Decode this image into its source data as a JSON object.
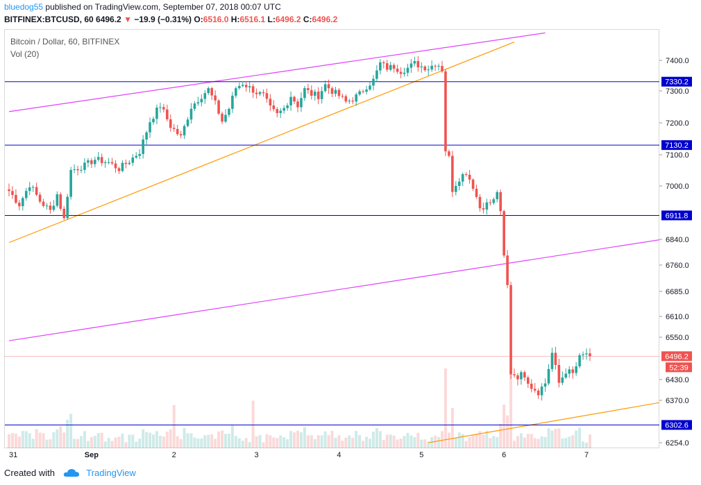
{
  "header": {
    "author": "bluedog55",
    "published_text": "published on TradingView.com, September 07, 2018 00:07 UTC",
    "symbol": "BITFINEX:BTCUSD, 60",
    "last": "6496.2",
    "change": "−19.9 (−0.31%)",
    "o_label": "O:",
    "o_value": "6516.0",
    "h_label": "H:",
    "h_value": "6516.1",
    "l_label": "L:",
    "l_value": "6496.2",
    "c_label": "C:",
    "c_value": "6496.2"
  },
  "legend": {
    "title": "Bitcoin / Dollar, 60, BITFINEX",
    "volume": "Vol (20)"
  },
  "footer": {
    "created_with": "Created with",
    "brand": "TradingView"
  },
  "colors": {
    "up": "#26a69a",
    "down": "#ef5350",
    "channel": "#e040fb",
    "trend": "#ff9800",
    "level": "#0000cc",
    "price_line": "#ef5350"
  },
  "chart_data": {
    "type": "candlestick",
    "ylim": [
      6254,
      7480
    ],
    "yticks": [
      6254,
      6370,
      6430,
      6550,
      6610,
      6685,
      6760,
      6840,
      7000,
      7100,
      7200,
      7300,
      7400
    ],
    "xticks": [
      {
        "label": "31",
        "x": 0
      },
      {
        "label": "Sep",
        "x": 24
      },
      {
        "label": "2",
        "x": 48
      },
      {
        "label": "3",
        "x": 72
      },
      {
        "label": "4",
        "x": 96
      },
      {
        "label": "5",
        "x": 120
      },
      {
        "label": "6",
        "x": 144
      },
      {
        "label": "7",
        "x": 168
      }
    ],
    "levels": [
      {
        "label": "7330.2",
        "value": 7330.2
      },
      {
        "label": "7130.2",
        "value": 7130.2
      },
      {
        "label": "6911.8",
        "value": 6911.8
      },
      {
        "label": "6302.6",
        "value": 6302.6
      }
    ],
    "last_price": {
      "label": "6496.2",
      "value": 6496.2,
      "countdown": "52:39"
    },
    "channel_lines": [
      {
        "x1": 0,
        "y1": 7235,
        "x2": 156,
        "y2": 7490
      },
      {
        "x1": 0,
        "y1": 6540,
        "x2": 190,
        "y2": 6840
      }
    ],
    "trend_lines": [
      {
        "x1": 0,
        "y1": 6830,
        "x2": 147,
        "y2": 7460
      },
      {
        "x1": 122,
        "y1": 6254,
        "x2": 190,
        "y2": 6365
      }
    ],
    "ohlc_anchors": [
      [
        0,
        6985
      ],
      [
        3,
        6945
      ],
      [
        6,
        7005
      ],
      [
        9,
        6955
      ],
      [
        12,
        6925
      ],
      [
        14,
        6975
      ],
      [
        16,
        6900
      ],
      [
        18,
        7050
      ],
      [
        22,
        7065
      ],
      [
        25,
        7085
      ],
      [
        29,
        7075
      ],
      [
        32,
        7055
      ],
      [
        35,
        7080
      ],
      [
        38,
        7110
      ],
      [
        41,
        7205
      ],
      [
        44,
        7255
      ],
      [
        47,
        7190
      ],
      [
        50,
        7155
      ],
      [
        53,
        7250
      ],
      [
        56,
        7285
      ],
      [
        58,
        7305
      ],
      [
        60,
        7260
      ],
      [
        62,
        7205
      ],
      [
        64,
        7245
      ],
      [
        66,
        7310
      ],
      [
        68,
        7325
      ],
      [
        70,
        7310
      ],
      [
        72,
        7295
      ],
      [
        74,
        7285
      ],
      [
        76,
        7245
      ],
      [
        78,
        7225
      ],
      [
        80,
        7245
      ],
      [
        82,
        7285
      ],
      [
        84,
        7255
      ],
      [
        86,
        7305
      ],
      [
        88,
        7290
      ],
      [
        90,
        7285
      ],
      [
        92,
        7320
      ],
      [
        94,
        7300
      ],
      [
        96,
        7285
      ],
      [
        98,
        7265
      ],
      [
        100,
        7275
      ],
      [
        102,
        7290
      ],
      [
        104,
        7315
      ],
      [
        106,
        7335
      ],
      [
        108,
        7390
      ],
      [
        110,
        7375
      ],
      [
        112,
        7380
      ],
      [
        114,
        7365
      ],
      [
        116,
        7375
      ],
      [
        118,
        7390
      ],
      [
        120,
        7380
      ],
      [
        122,
        7375
      ],
      [
        124,
        7390
      ],
      [
        125,
        7385
      ],
      [
        126,
        7370
      ],
      [
        127,
        7115
      ],
      [
        128,
        7090
      ],
      [
        129,
        6990
      ],
      [
        131,
        7025
      ],
      [
        133,
        7045
      ],
      [
        135,
        7000
      ],
      [
        137,
        6935
      ],
      [
        139,
        6945
      ],
      [
        141,
        6955
      ],
      [
        142,
        6985
      ],
      [
        143,
        6915
      ],
      [
        144,
        6785
      ],
      [
        145,
        6700
      ],
      [
        146,
        6450
      ],
      [
        148,
        6440
      ],
      [
        150,
        6445
      ],
      [
        152,
        6410
      ],
      [
        154,
        6395
      ],
      [
        156,
        6420
      ],
      [
        158,
        6505
      ],
      [
        160,
        6420
      ],
      [
        162,
        6455
      ],
      [
        164,
        6445
      ],
      [
        166,
        6490
      ],
      [
        168,
        6505
      ],
      [
        169,
        6496.2
      ]
    ],
    "total_bars": 170,
    "x_max": 192,
    "volume_max": 100
  }
}
